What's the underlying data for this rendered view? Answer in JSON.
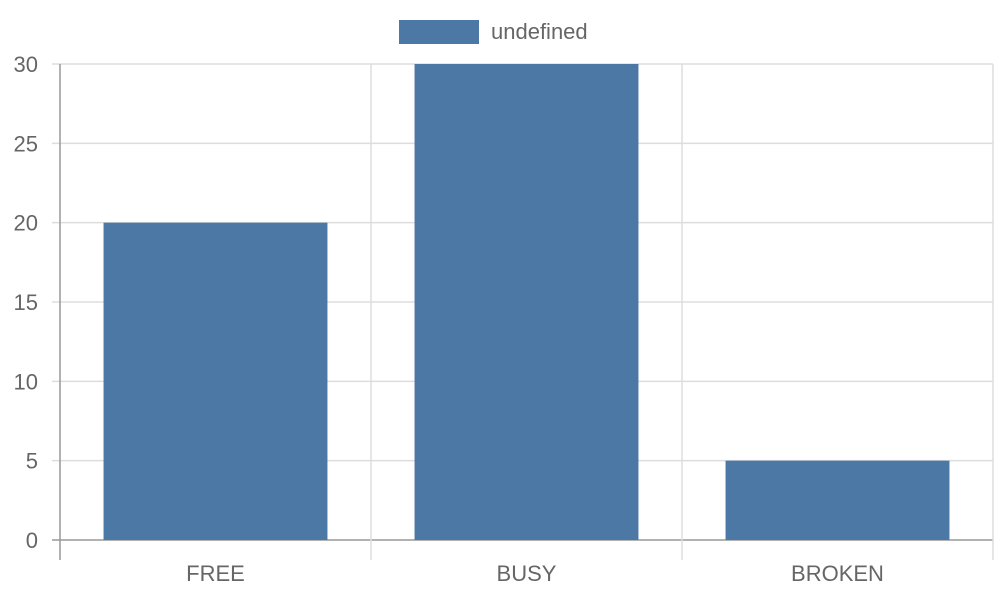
{
  "chart_data": {
    "type": "bar",
    "categories": [
      "FREE",
      "BUSY",
      "BROKEN"
    ],
    "series": [
      {
        "name": "undefined",
        "values": [
          20,
          30,
          5
        ],
        "color": "#4c78a6"
      }
    ],
    "ylim": [
      0,
      30
    ],
    "yticks": [
      0,
      5,
      10,
      15,
      20,
      25,
      30
    ],
    "grid": true,
    "legend": "top-center",
    "title": "",
    "xlabel": "",
    "ylabel": ""
  }
}
